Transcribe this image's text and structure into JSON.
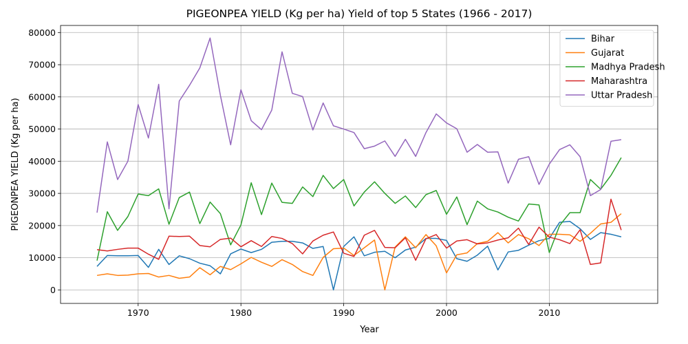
{
  "chart_data": {
    "type": "line",
    "title": "PIGEONPEA YIELD (Kg per ha) Yield of top 5 States (1966 - 2017)",
    "xlabel": "Year",
    "ylabel": "PIGEONPEA YIELD (Kg per ha)",
    "xlim": [
      1962.45,
      2020.55
    ],
    "ylim": [
      -4200,
      82200
    ],
    "x_ticks": [
      1970,
      1980,
      1990,
      2000,
      2010
    ],
    "x_tick_labels": [
      "1970",
      "1980",
      "1990",
      "2000",
      "2010"
    ],
    "y_ticks": [
      0,
      10000,
      20000,
      30000,
      40000,
      50000,
      60000,
      70000,
      80000
    ],
    "y_tick_labels": [
      "0",
      "10000",
      "20000",
      "30000",
      "40000",
      "50000",
      "60000",
      "70000",
      "80000"
    ],
    "grid": true,
    "legend_position": "top-right",
    "x": [
      1966,
      1967,
      1968,
      1969,
      1970,
      1971,
      1972,
      1973,
      1974,
      1975,
      1976,
      1977,
      1978,
      1979,
      1980,
      1981,
      1982,
      1983,
      1984,
      1985,
      1986,
      1987,
      1988,
      1989,
      1990,
      1991,
      1992,
      1993,
      1994,
      1995,
      1996,
      1997,
      1998,
      1999,
      2000,
      2001,
      2002,
      2003,
      2004,
      2005,
      2006,
      2007,
      2008,
      2009,
      2010,
      2011,
      2012,
      2013,
      2014,
      2015,
      2016,
      2017
    ],
    "series": [
      {
        "name": "Bihar",
        "color": "#1f77b4",
        "values": [
          7300,
          10700,
          10600,
          10600,
          10700,
          7000,
          12600,
          7900,
          10600,
          9700,
          8300,
          7500,
          5000,
          11200,
          12700,
          11600,
          12600,
          14800,
          15100,
          15100,
          14600,
          12900,
          13500,
          0,
          13500,
          16500,
          10600,
          11700,
          12000,
          10000,
          12400,
          13300,
          16000,
          16000,
          15400,
          9700,
          8900,
          10800,
          13600,
          6200,
          11800,
          12300,
          13900,
          15300,
          16000,
          21000,
          21300,
          19000,
          15700,
          17800,
          17300,
          16500
        ]
      },
      {
        "name": "Gujarat",
        "color": "#ff7f0e",
        "values": [
          4500,
          5000,
          4500,
          4600,
          5000,
          5100,
          4000,
          4500,
          3600,
          4000,
          6900,
          4700,
          7300,
          6300,
          8100,
          10100,
          8600,
          7300,
          9400,
          7900,
          5700,
          4500,
          10100,
          12800,
          13000,
          10700,
          13100,
          15500,
          0,
          13300,
          16500,
          13100,
          17200,
          13700,
          5300,
          10900,
          11500,
          14400,
          15100,
          17800,
          14600,
          17200,
          15900,
          13800,
          17300,
          17300,
          17100,
          15100,
          17600,
          20500,
          21000,
          23700
        ]
      },
      {
        "name": "Madhya Pradesh",
        "color": "#2ca02c",
        "values": [
          9100,
          24300,
          18500,
          22800,
          29800,
          29300,
          31400,
          20400,
          28700,
          30400,
          20600,
          27300,
          23700,
          14000,
          20200,
          33300,
          23400,
          33200,
          27200,
          26900,
          32000,
          29000,
          35600,
          31500,
          34300,
          26100,
          30400,
          33600,
          30000,
          26900,
          29200,
          25600,
          29600,
          30900,
          23500,
          28900,
          20300,
          27600,
          25200,
          24200,
          22600,
          21400,
          26700,
          26400,
          11600,
          20000,
          24000,
          24000,
          34300,
          31300,
          35600,
          41100
        ]
      },
      {
        "name": "Maharashtra",
        "color": "#d62728",
        "values": [
          12500,
          12100,
          12600,
          13000,
          13000,
          11100,
          9500,
          16700,
          16600,
          16700,
          13800,
          13400,
          15700,
          16100,
          13400,
          15300,
          13500,
          16600,
          16000,
          14400,
          11200,
          15200,
          17000,
          18000,
          11400,
          10400,
          17000,
          18500,
          13200,
          13100,
          16200,
          9200,
          15900,
          17200,
          13000,
          15200,
          15600,
          14300,
          14600,
          15500,
          16200,
          19200,
          14100,
          19500,
          16400,
          15600,
          14400,
          18700,
          7900,
          8400,
          28200,
          18600
        ]
      },
      {
        "name": "Uttar Pradesh",
        "color": "#9467bd",
        "values": [
          24000,
          46000,
          34300,
          40000,
          57600,
          47200,
          63900,
          25200,
          58700,
          63600,
          69000,
          78300,
          60500,
          45100,
          62200,
          52600,
          49800,
          55900,
          74000,
          61100,
          60100,
          49700,
          58100,
          51000,
          50000,
          48900,
          43900,
          44700,
          46300,
          41500,
          46800,
          41500,
          48900,
          54700,
          51900,
          50100,
          42800,
          45200,
          42800,
          42900,
          33200,
          40600,
          41400,
          32800,
          39100,
          43600,
          45100,
          41400,
          29300,
          31200,
          46200,
          46700
        ]
      }
    ]
  }
}
